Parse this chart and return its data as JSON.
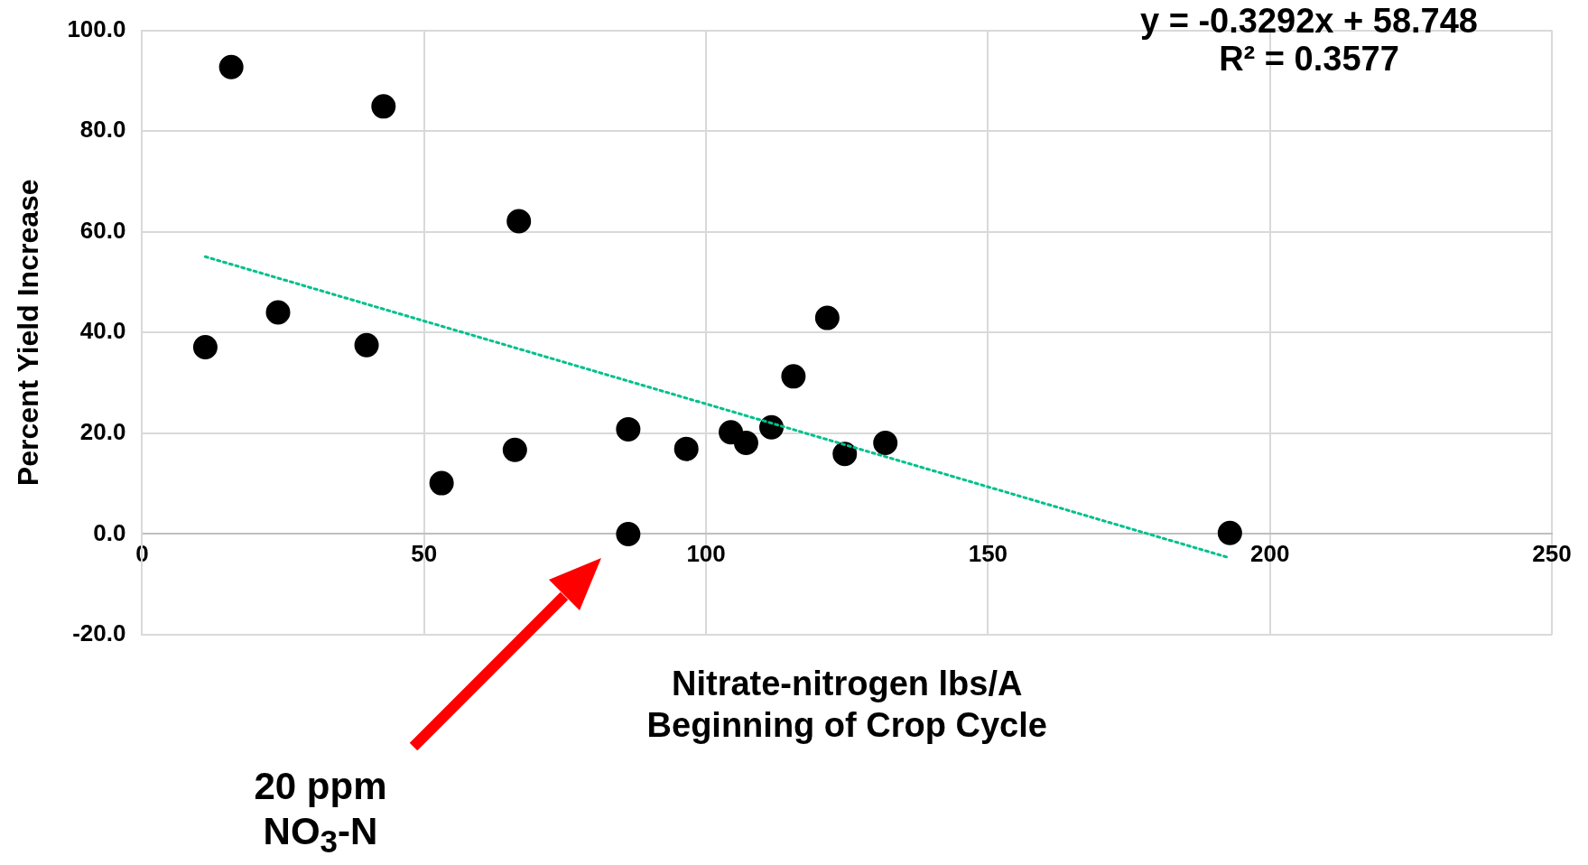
{
  "chart_data": {
    "type": "scatter",
    "xlabel": "Nitrate-nitrogen lbs/A\nBeginning of Crop Cycle",
    "ylabel": "Percent Yield Increase",
    "xlim": [
      0,
      250
    ],
    "xticks": [
      0,
      50,
      100,
      150,
      200,
      250
    ],
    "ylim": [
      -20,
      100
    ],
    "yticks": [
      {
        "value": -20,
        "label": "-20.0"
      },
      {
        "value": 0,
        "label": "0.0"
      },
      {
        "value": 20,
        "label": "20.0"
      },
      {
        "value": 40,
        "label": "40.0"
      },
      {
        "value": 60,
        "label": "60.0"
      },
      {
        "value": 80,
        "label": "80.0"
      },
      {
        "value": 100,
        "label": "100.0"
      }
    ],
    "grid": true,
    "legend": false,
    "marker": "circle",
    "series": [
      {
        "color": "#000000",
        "x": [
          11.2,
          15.8,
          24.1,
          39.8,
          42.8,
          53.1,
          66.1,
          66.8,
          86.2,
          86.2,
          96.5,
          104.4,
          107.1,
          111.6,
          115.5,
          121.5,
          124.6,
          131.8,
          192.9
        ],
        "values": [
          37.1,
          92.7,
          44.0,
          37.5,
          84.9,
          10.1,
          16.7,
          62.1,
          20.8,
          0,
          16.9,
          20.2,
          18.1,
          21.2,
          31.3,
          42.9,
          15.9,
          18.1,
          0.2
        ]
      },
      {
        "type": "line",
        "color": "#00c08b",
        "line_style": "dotted",
        "marker": "none",
        "x": [
          11.2,
          192.9
        ],
        "values": [
          55.06,
          -4.75
        ]
      }
    ],
    "annotations": [
      "y = -0.3292x + 58.748\nR² = 0.3577",
      "20 ppm\nNO$_{3}$-N"
    ]
  }
}
